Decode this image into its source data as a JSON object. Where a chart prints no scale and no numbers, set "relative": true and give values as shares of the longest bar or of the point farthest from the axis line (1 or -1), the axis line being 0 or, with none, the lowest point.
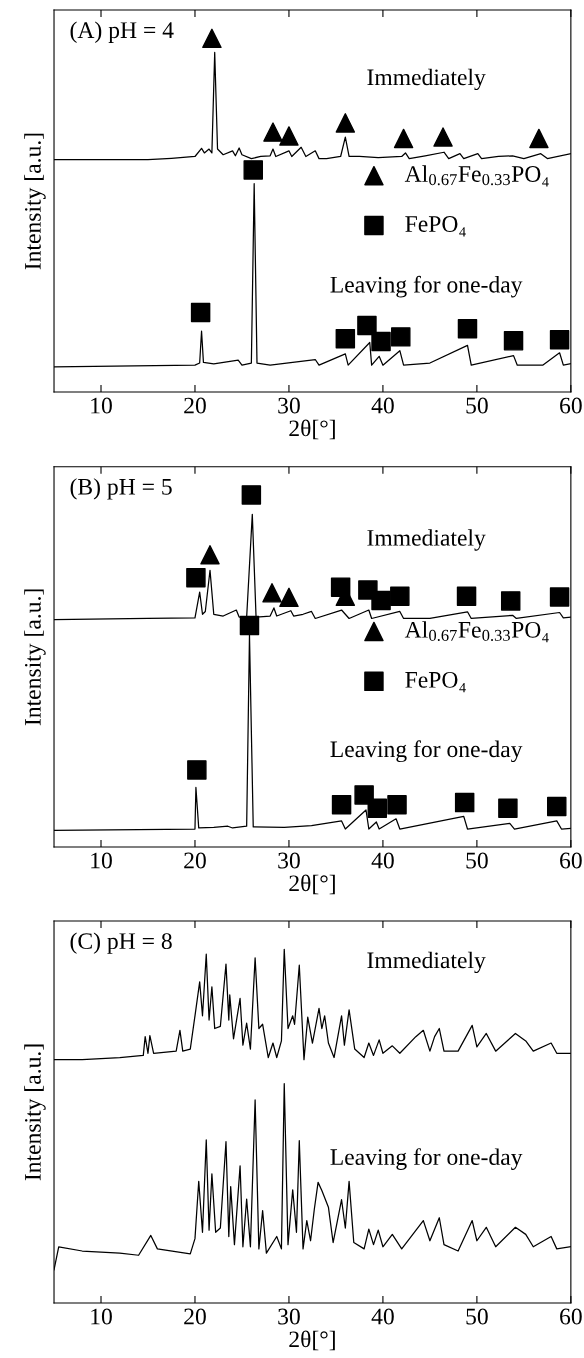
{
  "chart_data": [
    {
      "type": "line",
      "title": "(A) pH = 4",
      "xlabel": "2θ[°]",
      "ylabel": "Intensity [a.u.]",
      "relative": true,
      "xlim": [
        5,
        60
      ],
      "xticks": [
        10,
        20,
        30,
        40,
        50,
        60
      ],
      "tick_labels": "x",
      "grid": false,
      "legend": "center right",
      "annotations": [
        "Immediately",
        "Leaving for one-day"
      ],
      "series": [
        {
          "color": "#000000",
          "x": [
            5,
            15,
            17.5,
            20,
            20.7,
            21,
            21.5,
            21.8,
            22.1,
            22.4,
            23,
            24,
            24.3,
            24.7,
            25,
            26,
            27,
            28,
            28.3,
            28.6,
            30,
            30.3,
            31.3,
            31.8,
            32.8,
            33.2,
            34,
            35.5,
            36,
            36.4,
            37.5,
            39.5,
            42,
            42.4,
            42.8,
            44.5,
            46.5,
            47,
            48.2,
            48.6,
            50.1,
            50.5,
            52.3,
            53.8,
            55,
            56.8,
            57.5,
            60
          ],
          "values": [
            0.657,
            0.657,
            0.661,
            0.666,
            0.689,
            0.676,
            0.687,
            0.676,
            0.96,
            0.687,
            0.671,
            0.682,
            0.668,
            0.69,
            0.671,
            0.66,
            0.666,
            0.668,
            0.687,
            0.666,
            0.682,
            0.666,
            0.692,
            0.666,
            0.682,
            0.66,
            0.66,
            0.666,
            0.721,
            0.666,
            0.666,
            0.663,
            0.666,
            0.676,
            0.66,
            0.668,
            0.678,
            0.66,
            0.674,
            0.66,
            0.674,
            0.66,
            0.666,
            0.668,
            0.66,
            0.674,
            0.66,
            0.674
          ]
        },
        {
          "color": "#000000",
          "x": [
            5,
            20,
            20.5,
            20.7,
            20.9,
            22,
            24.6,
            25,
            26,
            26.3,
            26.6,
            28,
            32.8,
            33.2,
            36,
            36.3,
            38.6,
            38.8,
            39.6,
            40,
            41.8,
            42.2,
            45,
            49,
            49.4,
            53.9,
            54.3,
            57,
            58.8,
            59.2,
            60
          ],
          "values": [
            0.071,
            0.076,
            0.082,
            0.172,
            0.084,
            0.08,
            0.09,
            0.076,
            0.082,
            0.589,
            0.082,
            0.076,
            0.092,
            0.076,
            0.108,
            0.076,
            0.14,
            0.076,
            0.101,
            0.076,
            0.117,
            0.076,
            0.082,
            0.132,
            0.076,
            0.103,
            0.076,
            0.076,
            0.111,
            0.076,
            0.08
          ]
        },
        {
          "type": "scatter",
          "name": "Al$_{0.67}$Fe$_{0.33}$PO₄",
          "color": "#000000",
          "marker": "triangle",
          "x": [
            21.8,
            28.3,
            30,
            36,
            42.2,
            46.4,
            56.6
          ],
          "values": [
            1.0,
            0.735,
            0.724,
            0.761,
            0.717,
            0.721,
            0.717
          ]
        },
        {
          "type": "scatter",
          "name": "FePO₄",
          "color": "#000000",
          "marker": "square",
          "x": [
            26.2,
            20.6,
            36,
            38.3,
            39.8,
            41.9,
            49,
            53.9,
            58.8
          ],
          "values": [
            0.628,
            0.225,
            0.151,
            0.188,
            0.143,
            0.156,
            0.179,
            0.145,
            0.148
          ]
        }
      ]
    },
    {
      "type": "line",
      "title": "(B) pH = 5",
      "xlabel": "2θ[°]",
      "ylabel": "Intensity [a.u.]",
      "relative": true,
      "xlim": [
        5,
        60
      ],
      "xticks": [
        10,
        20,
        30,
        40,
        50,
        60
      ],
      "tick_labels": "x",
      "grid": false,
      "legend": "center right",
      "annotations": [
        "Immediately",
        "Leaving for one-day"
      ],
      "series": [
        {
          "color": "#000000",
          "x": [
            5,
            15,
            20,
            20.5,
            20.8,
            21.1,
            21.6,
            22,
            23,
            24.4,
            24.7,
            25.5,
            26.1,
            26.5,
            28,
            28.4,
            28.7,
            30.2,
            30.5,
            31.5,
            32.4,
            32.8,
            35.6,
            36,
            36.4,
            38.5,
            38.8,
            41.8,
            42.2,
            45,
            49,
            49.4,
            53.8,
            54.2,
            58.8,
            59.2,
            60
          ],
          "values": [
            0.646,
            0.649,
            0.651,
            0.724,
            0.661,
            0.669,
            0.786,
            0.661,
            0.656,
            0.673,
            0.653,
            0.653,
            0.945,
            0.653,
            0.656,
            0.679,
            0.656,
            0.671,
            0.656,
            0.661,
            0.669,
            0.649,
            0.673,
            0.661,
            0.649,
            0.673,
            0.649,
            0.669,
            0.649,
            0.649,
            0.668,
            0.649,
            0.658,
            0.649,
            0.666,
            0.651,
            0.653
          ]
        },
        {
          "color": "#000000",
          "x": [
            5,
            20,
            20.1,
            20.4,
            22,
            23.5,
            24,
            25.5,
            25.8,
            26.2,
            29.5,
            32.4,
            35.6,
            36,
            38.2,
            38.5,
            39.3,
            39.6,
            41.4,
            41.8,
            48.6,
            49,
            53.5,
            54,
            58.5,
            59,
            60
          ],
          "values": [
            0.047,
            0.051,
            0.169,
            0.054,
            0.056,
            0.059,
            0.054,
            0.059,
            0.602,
            0.057,
            0.056,
            0.061,
            0.074,
            0.051,
            0.105,
            0.051,
            0.071,
            0.051,
            0.08,
            0.051,
            0.087,
            0.051,
            0.067,
            0.051,
            0.074,
            0.051,
            0.053
          ]
        },
        {
          "type": "scatter",
          "name": "Al$_{0.67}$Fe$_{0.33}$PO₄",
          "color": "#000000",
          "marker": "triangle",
          "x": [
            21.6,
            28.2,
            30,
            36
          ],
          "values": [
            0.83,
            0.722,
            0.709,
            0.712
          ]
        },
        {
          "type": "scatter",
          "name": "FePO₄",
          "color": "#000000",
          "marker": "square",
          "x": [
            20.1,
            26.0,
            35.5,
            38.4,
            39.8,
            41.8,
            48.9,
            53.6,
            58.8,
            20.2,
            25.8,
            35.6,
            38.0,
            39.4,
            41.5,
            48.7,
            53.3,
            58.5
          ],
          "values": [
            0.765,
            1.0,
            0.738,
            0.73,
            0.7,
            0.712,
            0.712,
            0.699,
            0.71,
            0.219,
            0.629,
            0.12,
            0.148,
            0.11,
            0.12,
            0.126,
            0.11,
            0.115
          ]
        }
      ]
    },
    {
      "type": "line",
      "title": "(C) pH = 8",
      "xlabel": "2θ[°]",
      "ylabel": "Intensity [a.u.]",
      "relative": true,
      "xlim": [
        5,
        60
      ],
      "xticks": [
        10,
        20,
        30,
        40,
        50,
        60
      ],
      "tick_labels": "x",
      "grid": false,
      "annotations": [
        "Immediately",
        "Leaving for one-day"
      ],
      "series": [
        {
          "color": "#000000",
          "x": [
            5,
            8,
            12,
            14.5,
            14.7,
            15,
            15.2,
            15.6,
            18,
            18.4,
            18.7,
            19.5,
            20,
            20.5,
            20.8,
            21.2,
            21.5,
            21.8,
            22.1,
            22.7,
            23.3,
            23.6,
            23.7,
            24.1,
            24.8,
            25.1,
            25.5,
            25.9,
            26.4,
            26.8,
            27.2,
            27.8,
            28.3,
            28.7,
            29.2,
            29.5,
            29.9,
            30.4,
            30.6,
            31.1,
            31.6,
            32,
            32.5,
            33.2,
            33.5,
            33.8,
            34.2,
            34.8,
            35.6,
            35.9,
            36.4,
            37,
            38,
            38.5,
            39,
            39.6,
            40,
            41,
            41.8,
            43.5,
            44.3,
            45,
            45.5,
            46,
            46.5,
            48,
            49.5,
            50,
            51,
            52,
            54.1,
            55.2,
            56,
            57.9,
            58.5,
            60
          ],
          "values": [
            0.688,
            0.688,
            0.694,
            0.7,
            0.753,
            0.706,
            0.756,
            0.706,
            0.712,
            0.771,
            0.712,
            0.718,
            0.812,
            0.908,
            0.812,
            0.986,
            0.8,
            0.894,
            0.776,
            0.782,
            0.958,
            0.8,
            0.871,
            0.747,
            0.861,
            0.729,
            0.791,
            0.718,
            0.976,
            0.776,
            0.788,
            0.694,
            0.735,
            0.694,
            0.741,
            1.0,
            0.776,
            0.812,
            0.788,
            0.955,
            0.688,
            0.808,
            0.735,
            0.833,
            0.776,
            0.812,
            0.735,
            0.694,
            0.812,
            0.729,
            0.829,
            0.718,
            0.694,
            0.735,
            0.7,
            0.744,
            0.706,
            0.727,
            0.706,
            0.753,
            0.771,
            0.712,
            0.753,
            0.776,
            0.712,
            0.712,
            0.785,
            0.724,
            0.762,
            0.712,
            0.762,
            0.741,
            0.712,
            0.735,
            0.706,
            0.706
          ]
        },
        {
          "color": "#000000",
          "x": [
            5,
            5.5,
            8,
            12,
            14,
            15.3,
            16,
            19.5,
            20,
            20.4,
            20.8,
            21.2,
            21.5,
            21.8,
            22.2,
            22.7,
            23.3,
            23.6,
            23.8,
            24.2,
            24.8,
            25.1,
            25.5,
            25.9,
            26.4,
            26.8,
            27.2,
            27.6,
            28.7,
            29.2,
            29.5,
            29.9,
            30.4,
            30.8,
            31.1,
            31.5,
            31.9,
            32.3,
            32.7,
            33.1,
            33.5,
            34.2,
            34.7,
            35.6,
            36,
            36.4,
            36.9,
            38,
            38.5,
            39,
            39.5,
            40,
            41,
            42,
            44.3,
            45,
            46,
            46.5,
            48,
            49.5,
            50,
            51,
            52,
            54.1,
            55.2,
            56,
            57.9,
            58.5,
            60
          ],
          "values": [
            0.094,
            0.159,
            0.147,
            0.141,
            0.135,
            0.191,
            0.153,
            0.139,
            0.182,
            0.344,
            0.2,
            0.461,
            0.206,
            0.365,
            0.2,
            0.212,
            0.456,
            0.188,
            0.329,
            0.165,
            0.388,
            0.159,
            0.294,
            0.159,
            0.574,
            0.153,
            0.261,
            0.141,
            0.188,
            0.153,
            0.62,
            0.165,
            0.32,
            0.2,
            0.459,
            0.153,
            0.233,
            0.176,
            0.265,
            0.341,
            0.318,
            0.271,
            0.171,
            0.292,
            0.212,
            0.344,
            0.171,
            0.153,
            0.209,
            0.165,
            0.206,
            0.159,
            0.194,
            0.153,
            0.233,
            0.176,
            0.241,
            0.165,
            0.147,
            0.233,
            0.176,
            0.214,
            0.159,
            0.214,
            0.194,
            0.159,
            0.188,
            0.153,
            0.159
          ]
        }
      ]
    }
  ]
}
